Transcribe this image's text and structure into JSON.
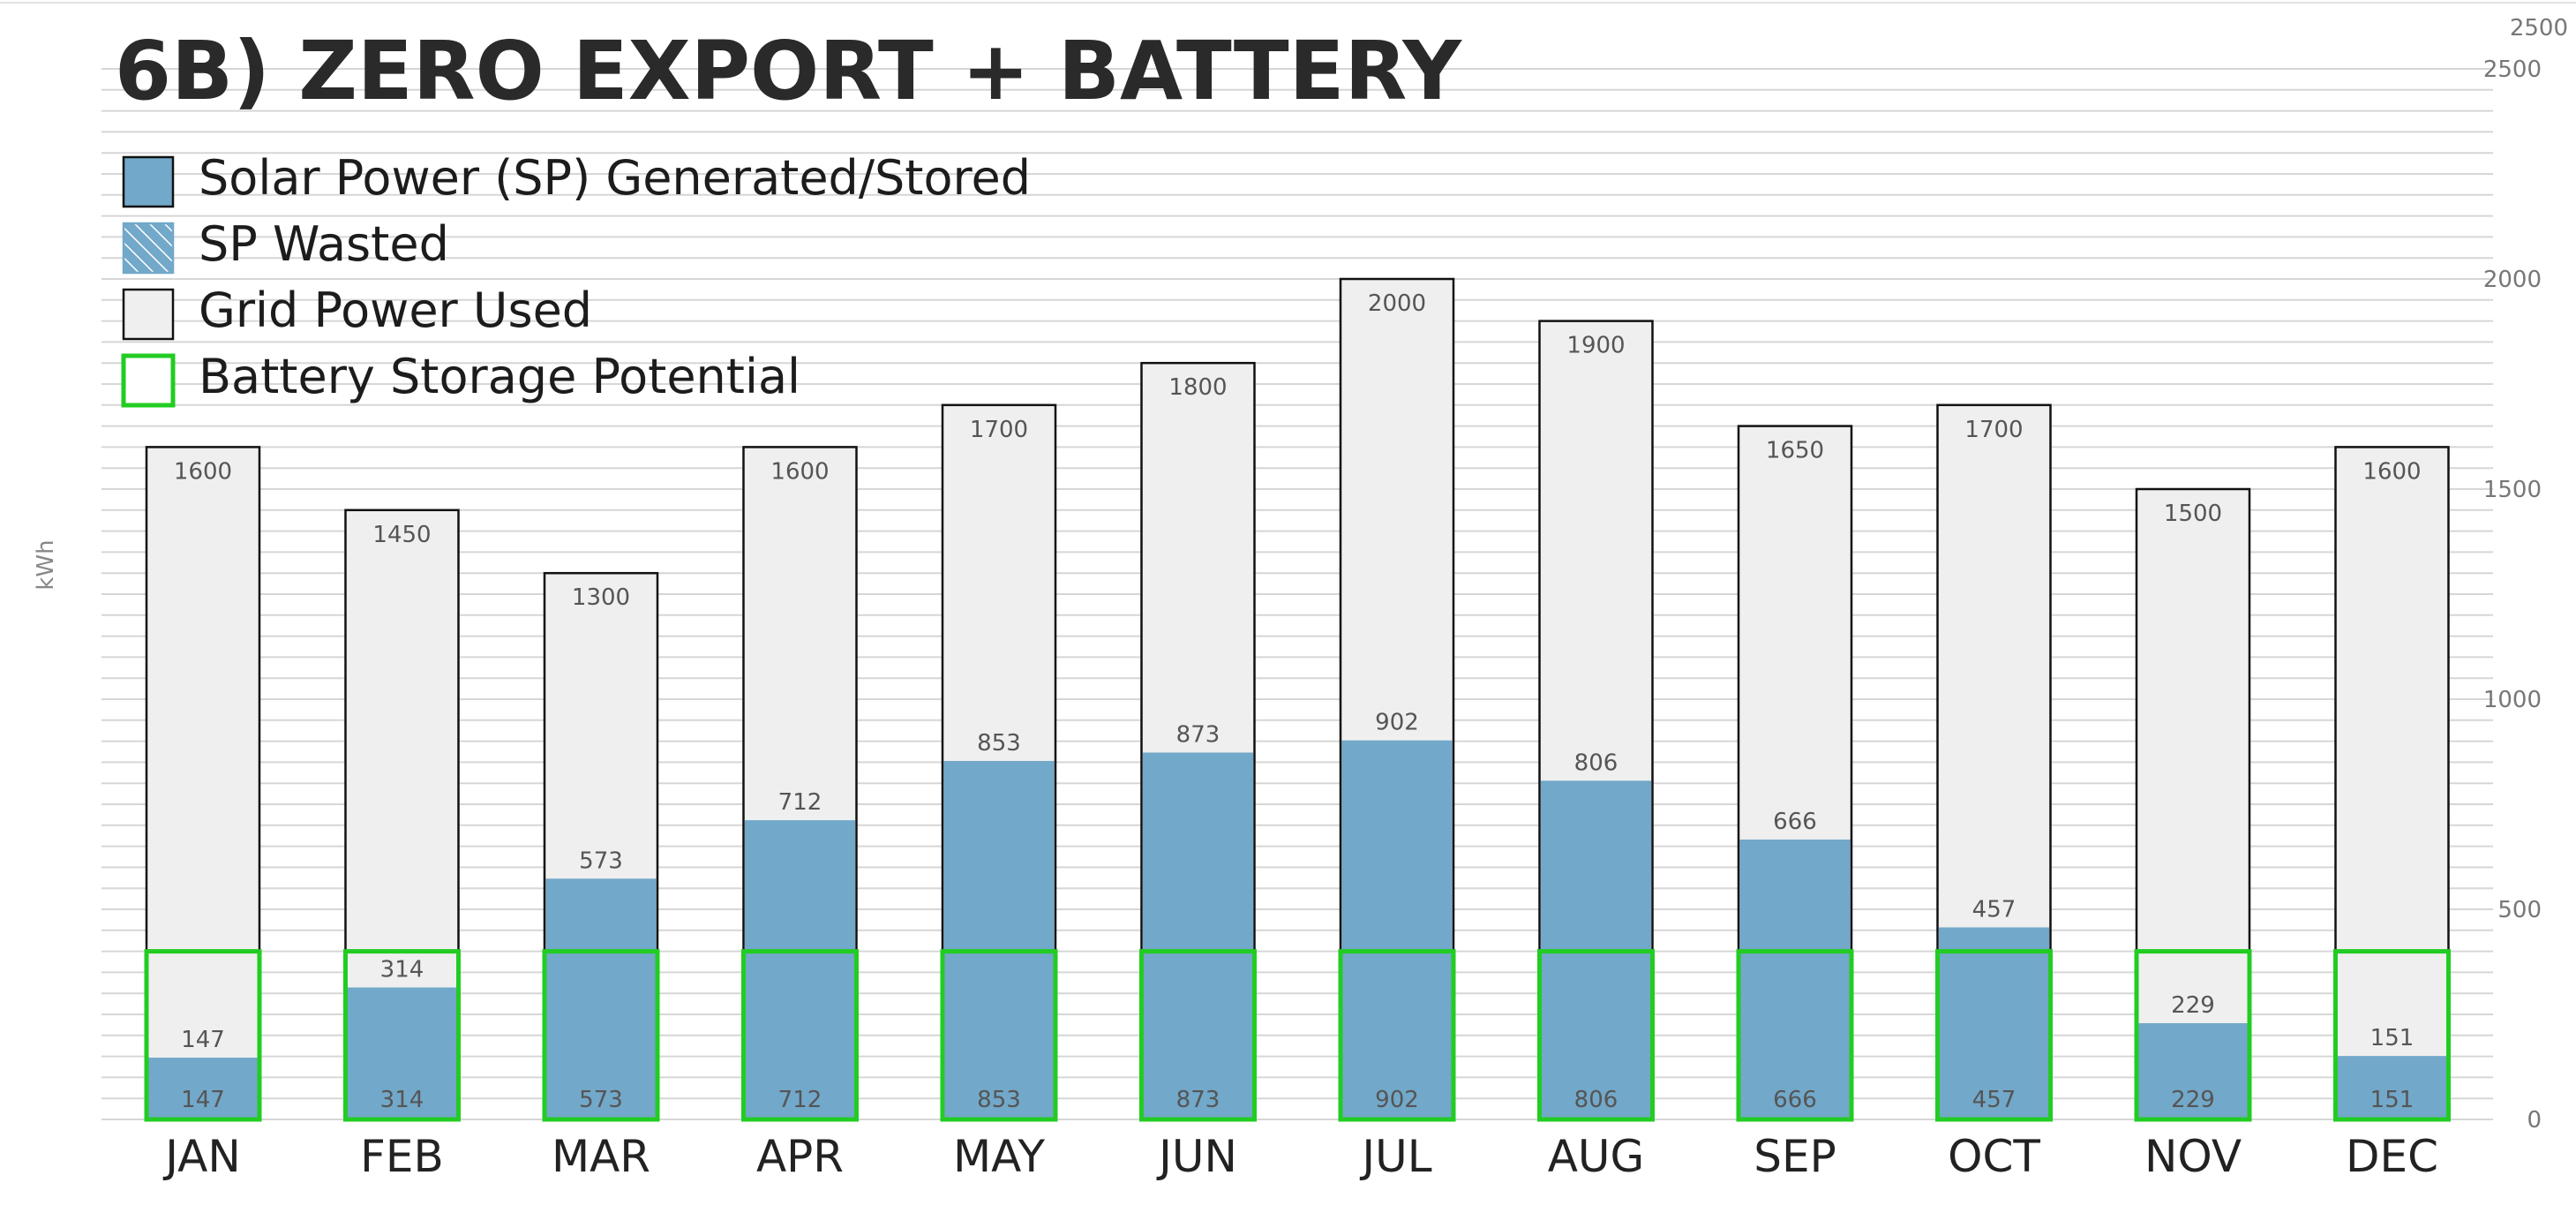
{
  "chart_data": {
    "type": "bar",
    "title": "6B) ZERO EXPORT + BATTERY",
    "ylabel": "kWh",
    "ylim": [
      0,
      2500
    ],
    "yticks": [
      "0",
      "500",
      "1000",
      "1500",
      "2000",
      "2500"
    ],
    "extra_top_tick": "2500",
    "grid": true,
    "legend_position": "top-left",
    "legend": [
      {
        "label": "Solar Power (SP) Generated/Stored",
        "swatch": "solar"
      },
      {
        "label": "SP Wasted",
        "swatch": "wasted"
      },
      {
        "label": "Grid Power Used",
        "swatch": "grid"
      },
      {
        "label": "Battery Storage Potential",
        "swatch": "battery"
      }
    ],
    "battery_capacity": 400,
    "categories": [
      "JAN",
      "FEB",
      "MAR",
      "APR",
      "MAY",
      "JUN",
      "JUL",
      "AUG",
      "SEP",
      "OCT",
      "NOV",
      "DEC"
    ],
    "series": [
      {
        "name": "Grid Power Used",
        "values": [
          1600,
          1450,
          1300,
          1600,
          1700,
          1800,
          2000,
          1900,
          1650,
          1700,
          1500,
          1600
        ]
      },
      {
        "name": "Solar Power (SP) Generated/Stored",
        "values": [
          147,
          314,
          573,
          712,
          853,
          873,
          902,
          806,
          666,
          457,
          229,
          151
        ]
      }
    ],
    "colors": {
      "solar": "#72a8c9",
      "grid": "#efefef",
      "battery": "#22cc22",
      "outline": "#111111",
      "gridline": "#d6d6d6",
      "text": "#555555",
      "title": "#2a2a2a"
    }
  }
}
